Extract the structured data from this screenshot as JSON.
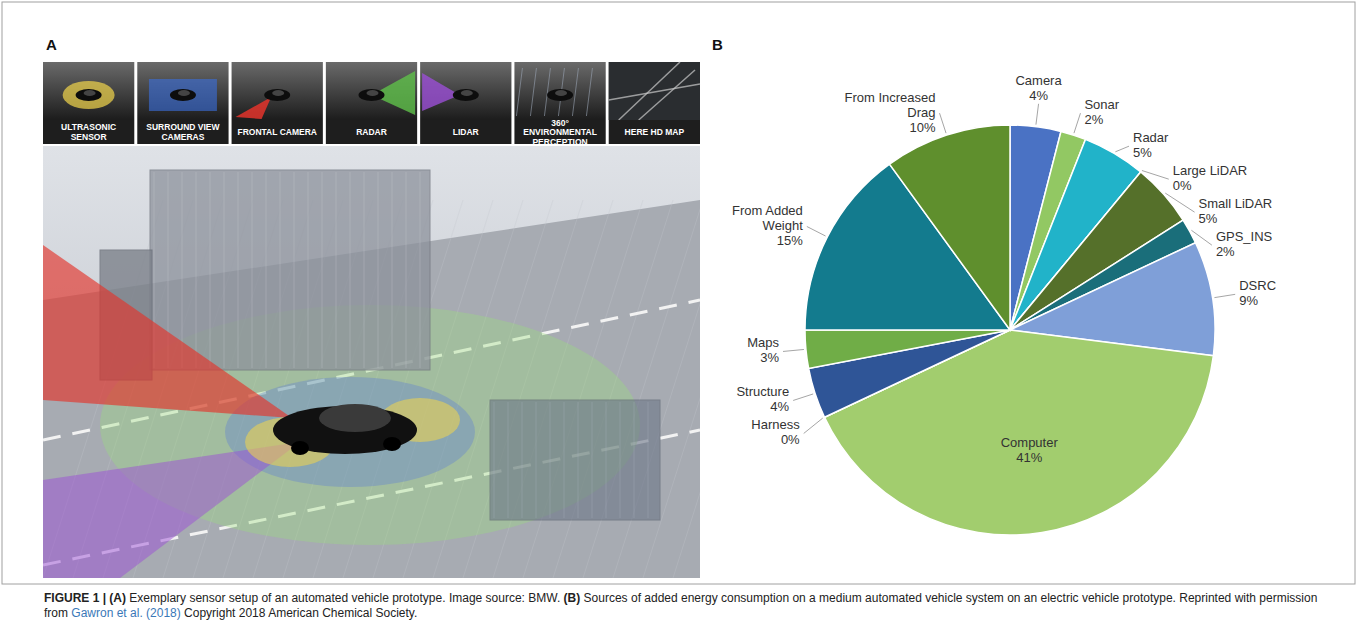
{
  "chart_data": {
    "type": "pie",
    "categories": [
      "Camera",
      "Sonar",
      "Radar",
      "Large LiDAR",
      "Small LiDAR",
      "GPS_INS",
      "DSRC",
      "Computer",
      "Harness",
      "Structure",
      "Maps",
      "From Added Weight",
      "From Increased Drag"
    ],
    "values": [
      4,
      2,
      5,
      0,
      5,
      2,
      9,
      41,
      0,
      4,
      3,
      15,
      10
    ],
    "value_labels": [
      "4%",
      "2%",
      "5%",
      "0%",
      "5%",
      "2%",
      "9%",
      "41%",
      "0%",
      "4%",
      "3%",
      "15%",
      "10%"
    ],
    "colors": [
      "#4a72c4",
      "#92c863",
      "#21b3c9",
      "#2d6e8e",
      "#55702a",
      "#1a6e7a",
      "#7f9fd8",
      "#a2cd6e",
      "#1f4e79",
      "#2f5597",
      "#70ad47",
      "#137b8e",
      "#5f8f2d"
    ],
    "data_labels": true
  },
  "panel_labels": [
    "A",
    "B"
  ],
  "panel_a": {
    "sensors": [
      "ULTRASONIC SENSOR",
      "SURROUND VIEW CAMERAS",
      "FRONTAL CAMERA",
      "RADAR",
      "LIDAR",
      "360° ENVIRONMENTAL PERCEPTION",
      "HERE HD MAP"
    ]
  },
  "caption": [
    {
      "bold": "FIGURE 1 | (A)"
    },
    {
      "text": " Exemplary sensor setup of an automated vehicle prototype. Image source: BMW. "
    },
    {
      "bold": "(B)"
    },
    {
      "text": " Sources of added energy consumption on a medium automated vehicle system on an electric vehicle prototype. Reprinted with permission from "
    },
    {
      "link": "Gawron et al. (2018)"
    },
    {
      "text": " Copyright 2018 American Chemical Society."
    }
  ]
}
